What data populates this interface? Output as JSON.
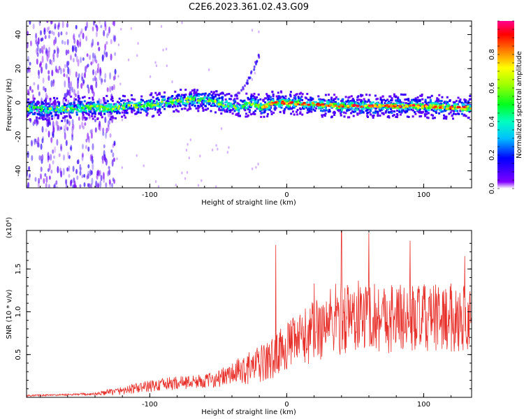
{
  "title": "C2E6.2023.361.02.43.G09",
  "chart_data": [
    {
      "type": "heatmap",
      "xlabel": "Height of straight line (km)",
      "ylabel": "Frequency (Hz)",
      "xlim": [
        -190,
        135
      ],
      "ylim": [
        -50,
        48
      ],
      "xticks": [
        -100,
        0,
        100
      ],
      "yticks": [
        -40,
        -20,
        0,
        20,
        40
      ],
      "xtick_labels": [
        "-100",
        "0",
        "100"
      ],
      "ytick_labels": [
        "-40",
        "-20",
        "0",
        "20",
        "40"
      ],
      "colorbar": {
        "label": "Normalized spectral amplitude",
        "range": [
          0,
          1
        ],
        "ticks": [
          0.0,
          0.2,
          0.4,
          0.6,
          0.8
        ],
        "tick_labels": [
          "0.0",
          "0.2",
          "0.4",
          "0.6",
          "0.8"
        ],
        "colormap": "gist_rainbow_r"
      },
      "ridge": {
        "x": [
          -190,
          -170,
          -150,
          -130,
          -110,
          -95,
          -80,
          -65,
          -55,
          -45,
          -35,
          -25,
          -18,
          -10,
          0,
          20,
          40,
          60,
          80,
          100,
          120,
          135
        ],
        "y": [
          -3,
          -4,
          -3,
          -3,
          -2,
          -1,
          1,
          2,
          1,
          -1,
          -3,
          0,
          -3,
          0,
          0,
          -1,
          -2,
          -2,
          -2,
          -2,
          -3,
          -3
        ]
      },
      "branch": {
        "x": [
          -40,
          -35,
          -30,
          -25,
          -20
        ],
        "y": [
          2,
          5,
          10,
          18,
          28
        ]
      },
      "noise_region": {
        "x": [
          -190,
          -125
        ],
        "y": [
          -50,
          48
        ]
      }
    },
    {
      "type": "line",
      "xlabel": "Height of straight line (km)",
      "ylabel": "SNR (10 * v/v)",
      "scale_label": "(x10⁴)",
      "xlim": [
        -190,
        135
      ],
      "ylim": [
        0,
        1.95
      ],
      "xticks": [
        -100,
        0,
        100
      ],
      "yticks": [
        0.5,
        1.0,
        1.5
      ],
      "xtick_labels": [
        "-100",
        "0",
        "100"
      ],
      "ytick_labels": [
        "0.5",
        "1.0",
        "1.5"
      ],
      "color": "#e8302a",
      "envelope": {
        "x": [
          -190,
          -160,
          -140,
          -120,
          -100,
          -80,
          -60,
          -50,
          -40,
          -30,
          -20,
          -10,
          -5,
          0,
          10,
          20,
          30,
          40,
          60,
          80,
          100,
          120,
          135
        ],
        "mean": [
          0.02,
          0.03,
          0.04,
          0.08,
          0.13,
          0.17,
          0.19,
          0.22,
          0.27,
          0.33,
          0.38,
          0.45,
          0.55,
          0.6,
          0.67,
          0.78,
          0.88,
          0.94,
          0.95,
          0.93,
          0.92,
          0.93,
          0.94
        ],
        "amplitude": [
          0.01,
          0.01,
          0.02,
          0.05,
          0.07,
          0.08,
          0.08,
          0.1,
          0.14,
          0.18,
          0.22,
          0.25,
          0.25,
          0.28,
          0.32,
          0.38,
          0.42,
          0.45,
          0.42,
          0.42,
          0.4,
          0.4,
          0.4
        ]
      },
      "spikes": [
        {
          "x": -8,
          "y": 1.78
        },
        {
          "x": 20,
          "y": 1.33
        },
        {
          "x": 40,
          "y": 1.95
        },
        {
          "x": 60,
          "y": 1.92
        },
        {
          "x": 90,
          "y": 1.83
        },
        {
          "x": 130,
          "y": 1.65
        }
      ]
    }
  ]
}
